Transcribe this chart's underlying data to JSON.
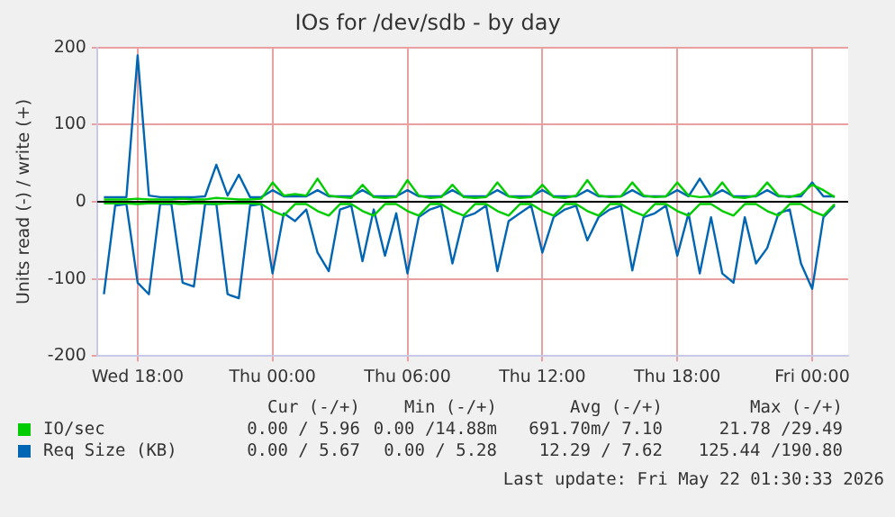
{
  "chart_data": {
    "type": "line",
    "title": "IOs for /dev/sdb - by day",
    "ylabel": "Units read (-) / write (+)",
    "x": [
      "2026-05-20T16:30",
      "2026-05-20T17:00",
      "2026-05-20T17:30",
      "2026-05-20T18:00",
      "2026-05-20T18:30",
      "2026-05-20T19:00",
      "2026-05-20T19:30",
      "2026-05-20T20:00",
      "2026-05-20T20:30",
      "2026-05-20T21:00",
      "2026-05-20T21:30",
      "2026-05-20T22:00",
      "2026-05-20T22:30",
      "2026-05-20T23:00",
      "2026-05-20T23:30",
      "2026-05-21T00:00",
      "2026-05-21T00:30",
      "2026-05-21T01:00",
      "2026-05-21T01:30",
      "2026-05-21T02:00",
      "2026-05-21T02:30",
      "2026-05-21T03:00",
      "2026-05-21T03:30",
      "2026-05-21T04:00",
      "2026-05-21T04:30",
      "2026-05-21T05:00",
      "2026-05-21T05:30",
      "2026-05-21T06:00",
      "2026-05-21T06:30",
      "2026-05-21T07:00",
      "2026-05-21T07:30",
      "2026-05-21T08:00",
      "2026-05-21T08:30",
      "2026-05-21T09:00",
      "2026-05-21T09:30",
      "2026-05-21T10:00",
      "2026-05-21T10:30",
      "2026-05-21T11:00",
      "2026-05-21T11:30",
      "2026-05-21T12:00",
      "2026-05-21T12:30",
      "2026-05-21T13:00",
      "2026-05-21T13:30",
      "2026-05-21T14:00",
      "2026-05-21T14:30",
      "2026-05-21T15:00",
      "2026-05-21T15:30",
      "2026-05-21T16:00",
      "2026-05-21T16:30",
      "2026-05-21T17:00",
      "2026-05-21T17:30",
      "2026-05-21T18:00",
      "2026-05-21T18:30",
      "2026-05-21T19:00",
      "2026-05-21T19:30",
      "2026-05-21T20:00",
      "2026-05-21T20:30",
      "2026-05-21T21:00",
      "2026-05-21T21:30",
      "2026-05-21T22:00",
      "2026-05-21T22:30",
      "2026-05-21T23:00",
      "2026-05-21T23:30",
      "2026-05-22T00:00",
      "2026-05-22T00:30",
      "2026-05-22T01:00"
    ],
    "xlim": [
      "2026-05-20T16:12",
      "2026-05-22T01:36"
    ],
    "xticks": [
      {
        "value": "2026-05-20T18:00",
        "label": "Wed 18:00"
      },
      {
        "value": "2026-05-21T00:00",
        "label": "Thu 00:00"
      },
      {
        "value": "2026-05-21T06:00",
        "label": "Thu 06:00"
      },
      {
        "value": "2026-05-21T12:00",
        "label": "Thu 12:00"
      },
      {
        "value": "2026-05-21T18:00",
        "label": "Thu 18:00"
      },
      {
        "value": "2026-05-22T00:00",
        "label": "Fri 00:00"
      }
    ],
    "ylim": [
      -200,
      200
    ],
    "yticks": [
      -200,
      -100,
      0,
      100,
      200
    ],
    "grid": true,
    "legend": "bottom left",
    "marker": "none",
    "line_style": "solid",
    "ref_lines": [
      {
        "axis": "y",
        "value": 0,
        "color": "#000000"
      }
    ],
    "series": [
      {
        "name": "IO/sec",
        "color": "#00cc00",
        "values": [
          3,
          3,
          3,
          4,
          3,
          3,
          3,
          4,
          3,
          3,
          5,
          4,
          3,
          3,
          4,
          25,
          8,
          10,
          8,
          30,
          8,
          6,
          5,
          22,
          6,
          5,
          6,
          28,
          8,
          5,
          6,
          22,
          6,
          5,
          6,
          25,
          7,
          5,
          6,
          22,
          6,
          5,
          8,
          28,
          8,
          6,
          7,
          25,
          8,
          6,
          7,
          25,
          8,
          6,
          7,
          25,
          6,
          5,
          8,
          25,
          8,
          6,
          10,
          22,
          15,
          6
        ]
      },
      {
        "color": "#00cc00",
        "values": [
          -2,
          -2,
          -2,
          -3,
          -2,
          -2,
          -2,
          -3,
          -2,
          -2,
          -3,
          -2,
          -2,
          -2,
          -3,
          -12,
          -18,
          -3,
          -3,
          -12,
          -18,
          -3,
          -3,
          -12,
          -18,
          -3,
          -3,
          -12,
          -18,
          -3,
          -3,
          -12,
          -18,
          -3,
          -3,
          -12,
          -18,
          -3,
          -3,
          -12,
          -18,
          -3,
          -3,
          -12,
          -18,
          -3,
          -3,
          -12,
          -18,
          -3,
          -3,
          -12,
          -18,
          -3,
          -3,
          -12,
          -18,
          -3,
          -3,
          -12,
          -18,
          -3,
          -3,
          -12,
          -18,
          -3
        ]
      },
      {
        "name": "Req Size (KB)",
        "color": "#0066b3",
        "values": [
          6,
          6,
          6,
          190,
          8,
          6,
          6,
          6,
          6,
          7,
          48,
          8,
          35,
          6,
          6,
          15,
          7,
          7,
          7,
          15,
          7,
          7,
          7,
          15,
          7,
          7,
          7,
          15,
          7,
          7,
          7,
          15,
          7,
          7,
          7,
          15,
          7,
          7,
          7,
          15,
          7,
          7,
          7,
          15,
          7,
          7,
          7,
          15,
          7,
          7,
          7,
          15,
          7,
          30,
          7,
          15,
          7,
          7,
          7,
          15,
          7,
          7,
          7,
          25,
          7,
          7
        ]
      },
      {
        "color": "#0066b3",
        "values": [
          -120,
          -5,
          -3,
          -105,
          -120,
          -3,
          -3,
          -105,
          -110,
          -3,
          -3,
          -120,
          -125,
          -5,
          -3,
          -93,
          -15,
          -25,
          -10,
          -66,
          -90,
          -10,
          -5,
          -77,
          -10,
          -70,
          -15,
          -93,
          -20,
          -10,
          -5,
          -80,
          -20,
          -15,
          -5,
          -90,
          -25,
          -15,
          -5,
          -66,
          -20,
          -10,
          -5,
          -50,
          -20,
          -10,
          -5,
          -89,
          -20,
          -15,
          -5,
          -70,
          -15,
          -93,
          -20,
          -93,
          -105,
          -20,
          -80,
          -60,
          -15,
          -10,
          -80,
          -113,
          -20,
          -5
        ]
      }
    ],
    "annotations": [
      "Cur (-/+)",
      "Min (-/+)",
      "Avg (-/+)",
      "Max (-/+)",
      "0.00 / 5.96",
      "0.00 /14.88m",
      "691.70m/ 7.10",
      "21.78 /29.49",
      "0.00 / 5.67",
      "0.00 / 5.28",
      "12.29 / 7.62",
      "125.44 /190.80",
      "Last update: Fri May 22 01:30:33 2026"
    ]
  }
}
